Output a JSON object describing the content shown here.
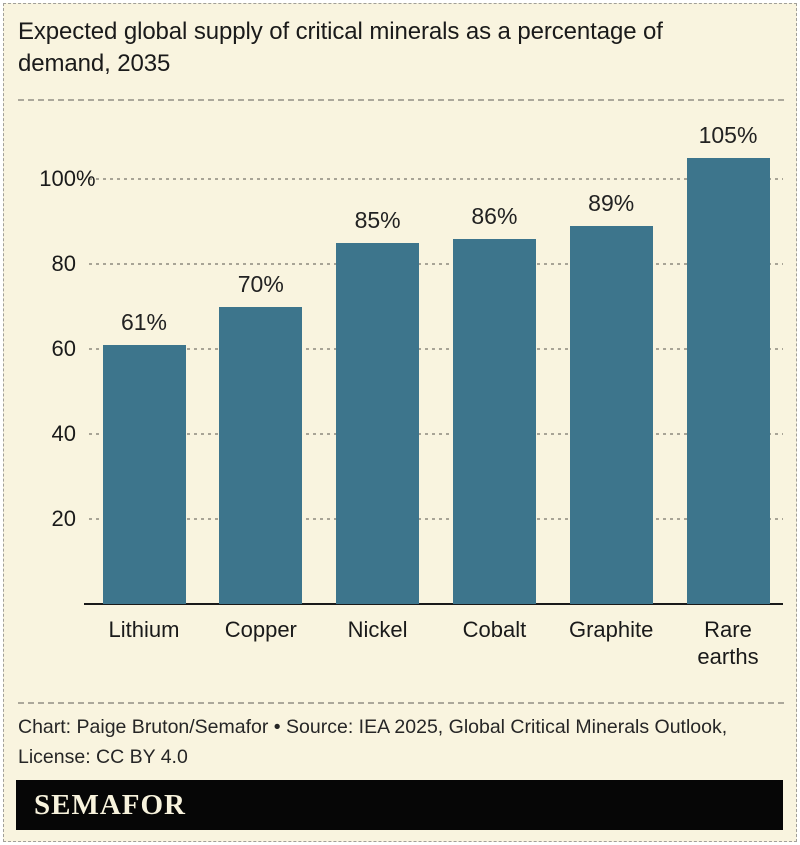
{
  "title": "Expected global supply of critical minerals as a percentage of\ndemand, 2035",
  "chart_data": {
    "type": "bar",
    "title": "Expected global supply of critical minerals as a percentage of demand, 2035",
    "categories": [
      "Lithium",
      "Copper",
      "Nickel",
      "Cobalt",
      "Graphite",
      "Rare earths"
    ],
    "values": [
      61,
      70,
      85,
      86,
      89,
      105
    ],
    "value_labels": [
      "61%",
      "70%",
      "85%",
      "86%",
      "89%",
      "105%"
    ],
    "y_ticks": [
      20,
      40,
      60,
      80,
      100
    ],
    "y_tick_labels": [
      "20",
      "40",
      "60",
      "80",
      "100%"
    ],
    "ylim": [
      0,
      118
    ],
    "xlabel": "",
    "ylabel": "",
    "grid": true,
    "grid_style": "dashed-horizontal",
    "legend": "none",
    "bar_color": "#3D758C"
  },
  "footer": {
    "credit": "Chart: Paige Bruton/Semafor • Source: IEA 2025, Global Critical Minerals Outlook,\nLicense: CC BY 4.0",
    "logo_text": "SEMAFOR"
  },
  "colors": {
    "card_background": "#F9F4DF",
    "bar": "#3D758C",
    "text": "#1A1A1A",
    "gridline": "#A8A496",
    "axis": "#1A1A1A",
    "logo_background": "#060606",
    "logo_text": "#F7F2DC"
  }
}
